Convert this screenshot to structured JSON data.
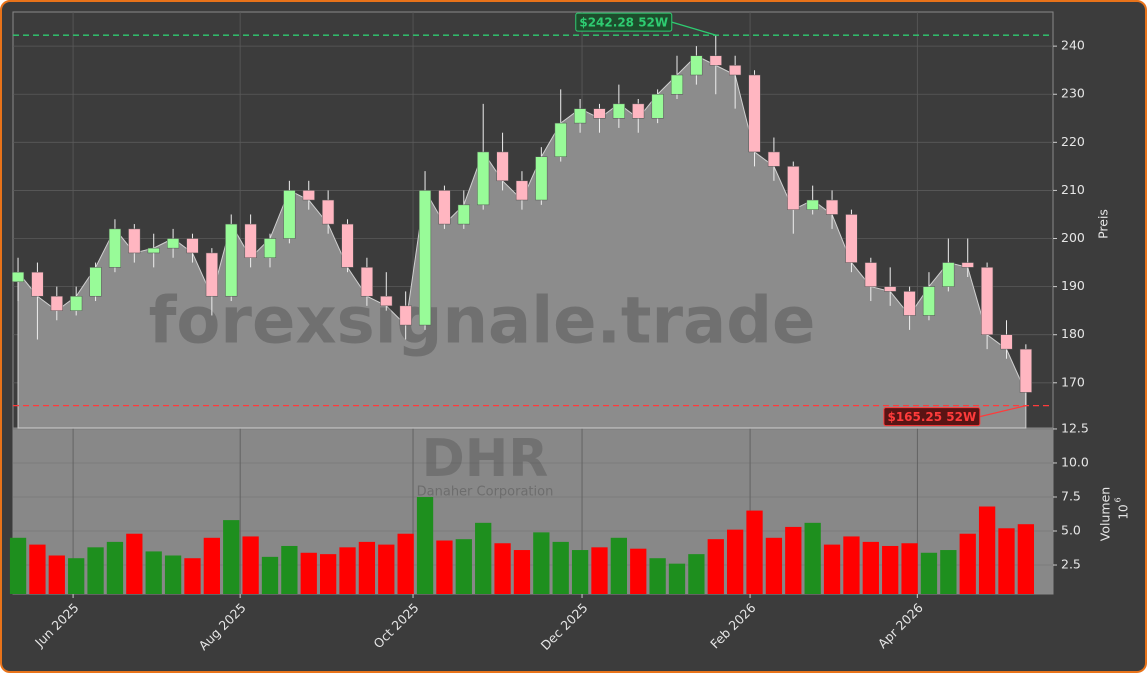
{
  "chart_data": {
    "type": "candlestick",
    "watermark": "forexsignale.trade",
    "symbol": "DHR",
    "company": "Danaher Corporation",
    "ylabel": "Preis",
    "volume_ylabel": "Volumen",
    "volume_scale_base": "10",
    "volume_scale_exponent": "6",
    "xlim": [
      -0.26,
      53.4
    ],
    "xticks": [
      {
        "value": 2.84,
        "label": "Jun 2025"
      },
      {
        "value": 11.46,
        "label": "Aug 2025"
      },
      {
        "value": 20.38,
        "label": "Oct 2025"
      },
      {
        "value": 29.1,
        "label": "Dec 2025"
      },
      {
        "value": 37.77,
        "label": "Feb 2026"
      },
      {
        "value": 46.4,
        "label": "Apr 2026"
      }
    ],
    "ylim": [
      160.6,
      247.1
    ],
    "yticks": [
      170,
      180,
      190,
      200,
      210,
      220,
      230,
      240
    ],
    "volume_ylim": [
      0.37,
      12.57
    ],
    "volume_yticks": [
      2.5,
      {
        "value": 5,
        "label": "5.0"
      },
      7.5,
      {
        "value": 10,
        "label": "10.0"
      },
      12.5
    ],
    "grid": true,
    "up_color": "#98fb98",
    "down_color": "#ffb6c1",
    "volume_up_color": "#1e8f1e",
    "volume_down_color": "#ff0000",
    "area_color": "#8c8c8c",
    "open": [
      191,
      193,
      188,
      185,
      188,
      194,
      202,
      197,
      198,
      200,
      197,
      188,
      203,
      196,
      200,
      210,
      208,
      203,
      194,
      188,
      186,
      182,
      210,
      203,
      207,
      218,
      212,
      208,
      217,
      224,
      227,
      225,
      228,
      225,
      230,
      234,
      238,
      236,
      234,
      218,
      215,
      206,
      208,
      205,
      195,
      190,
      189,
      184,
      190,
      195,
      194,
      180,
      177
    ],
    "high": [
      196,
      195,
      190,
      190,
      195,
      204,
      203,
      201,
      202,
      201,
      198,
      205,
      205,
      201,
      212,
      212,
      210,
      204,
      196,
      193,
      189,
      214,
      211,
      210,
      228,
      222,
      214,
      219,
      231,
      229,
      228,
      232,
      229,
      231,
      238,
      240,
      242.28,
      238,
      235,
      221,
      216,
      211,
      210,
      206,
      196,
      194,
      190,
      193,
      200,
      200,
      195,
      183,
      178
    ],
    "low": [
      187,
      179,
      183,
      184,
      187,
      193,
      195,
      194,
      196,
      195,
      184,
      187,
      194,
      194,
      199,
      206,
      201,
      193,
      186,
      185,
      179,
      181,
      202,
      202,
      206,
      210,
      206,
      207,
      216,
      222,
      222,
      223,
      222,
      224,
      229,
      232,
      230,
      227,
      215,
      212,
      201,
      205,
      202,
      193,
      187,
      186,
      181,
      183,
      189,
      192,
      177,
      175,
      165.25
    ],
    "close": [
      193,
      188,
      185,
      188,
      194,
      202,
      197,
      198,
      200,
      197,
      188,
      203,
      196,
      200,
      210,
      208,
      203,
      194,
      188,
      186,
      182,
      210,
      203,
      207,
      218,
      212,
      208,
      217,
      224,
      227,
      225,
      228,
      225,
      230,
      234,
      238,
      236,
      234,
      218,
      215,
      206,
      208,
      205,
      195,
      190,
      189,
      184,
      190,
      195,
      194,
      180,
      177,
      168
    ],
    "volume": [
      4.5,
      4.0,
      3.2,
      3.0,
      3.8,
      4.2,
      4.8,
      3.5,
      3.2,
      3.0,
      4.5,
      5.8,
      4.6,
      3.1,
      3.9,
      3.4,
      3.3,
      3.8,
      4.2,
      4.0,
      4.8,
      7.5,
      4.3,
      4.4,
      5.6,
      4.1,
      3.6,
      4.9,
      4.2,
      3.6,
      3.8,
      4.5,
      3.7,
      3.0,
      2.6,
      3.3,
      4.4,
      5.1,
      6.5,
      4.5,
      5.3,
      5.6,
      4.0,
      4.6,
      4.2,
      3.9,
      4.1,
      3.4,
      3.6,
      4.8,
      6.8,
      5.2,
      5.5
    ],
    "annotations": [
      {
        "text": "$242.28 52W",
        "value": 242.28,
        "color": "#2ecc71",
        "kind": "high"
      },
      {
        "text": "$165.25 52W",
        "value": 165.25,
        "color": "#ff3b3b",
        "kind": "low"
      }
    ]
  }
}
